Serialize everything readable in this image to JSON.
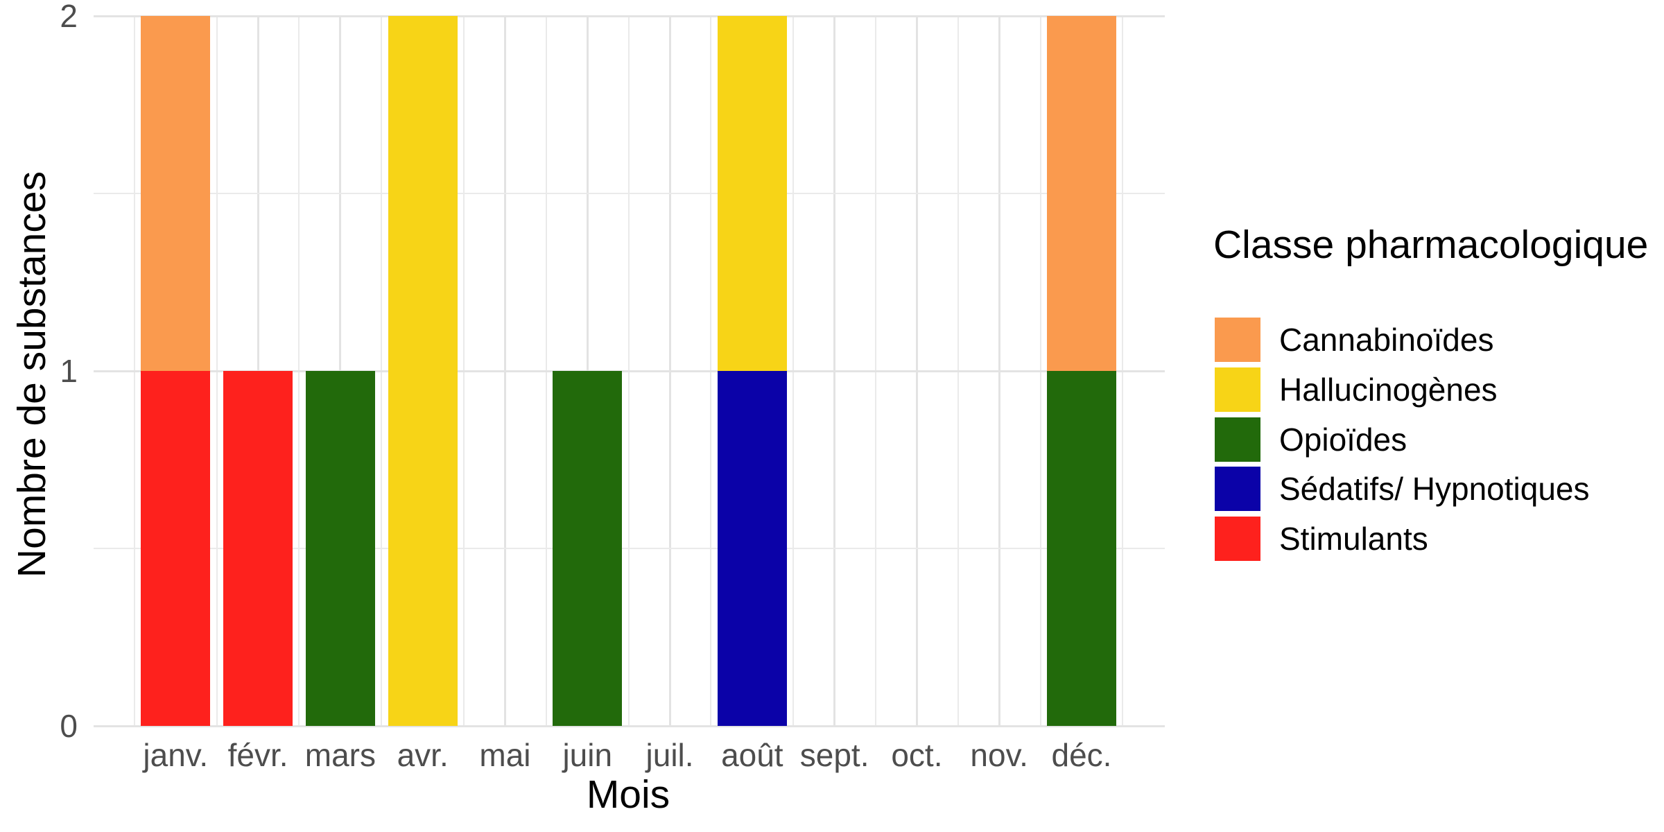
{
  "chart_data": {
    "type": "bar",
    "stacked": true,
    "xlabel": "Mois",
    "ylabel": "Nombre de substances",
    "legend_title": "Classe pharmacologique",
    "legend_position": "right",
    "grid": true,
    "background": "#ffffff",
    "categories": [
      "janv.",
      "févr.",
      "mars",
      "avr.",
      "mai",
      "juin",
      "juil.",
      "août",
      "sept.",
      "oct.",
      "nov.",
      "déc."
    ],
    "series": [
      {
        "name": "Cannabinoïdes",
        "color": "#FA9A4E",
        "values": [
          1,
          0,
          0,
          0,
          0,
          0,
          0,
          0,
          0,
          0,
          0,
          1
        ]
      },
      {
        "name": "Hallucinogènes",
        "color": "#F7D417",
        "values": [
          0,
          0,
          0,
          2,
          0,
          0,
          0,
          1,
          0,
          0,
          0,
          0
        ]
      },
      {
        "name": "Opioïdes",
        "color": "#226A0B",
        "values": [
          0,
          0,
          1,
          0,
          0,
          1,
          0,
          0,
          0,
          0,
          0,
          1
        ]
      },
      {
        "name": "Sédatifs/ Hypnotiques",
        "color": "#0B02A8",
        "values": [
          0,
          0,
          0,
          0,
          0,
          0,
          0,
          1,
          0,
          0,
          0,
          0
        ]
      },
      {
        "name": "Stimulants",
        "color": "#FE211D",
        "values": [
          1,
          1,
          0,
          0,
          0,
          0,
          0,
          0,
          0,
          0,
          0,
          0
        ]
      }
    ],
    "stack_order_bottom_to_top": [
      "Stimulants",
      "Sédatifs/ Hypnotiques",
      "Opioïdes",
      "Hallucinogènes",
      "Cannabinoïdes"
    ],
    "y_ticks": [
      "0",
      "1",
      "2"
    ],
    "y_tick_values": [
      0,
      1,
      2
    ],
    "y_minor_values": [
      0.5,
      1.5
    ],
    "ylim": [
      0,
      2
    ],
    "tick_label_color": "#4d4d4d",
    "major_grid_color": "#E3E3E3",
    "minor_grid_color": "#EAEAEA"
  }
}
